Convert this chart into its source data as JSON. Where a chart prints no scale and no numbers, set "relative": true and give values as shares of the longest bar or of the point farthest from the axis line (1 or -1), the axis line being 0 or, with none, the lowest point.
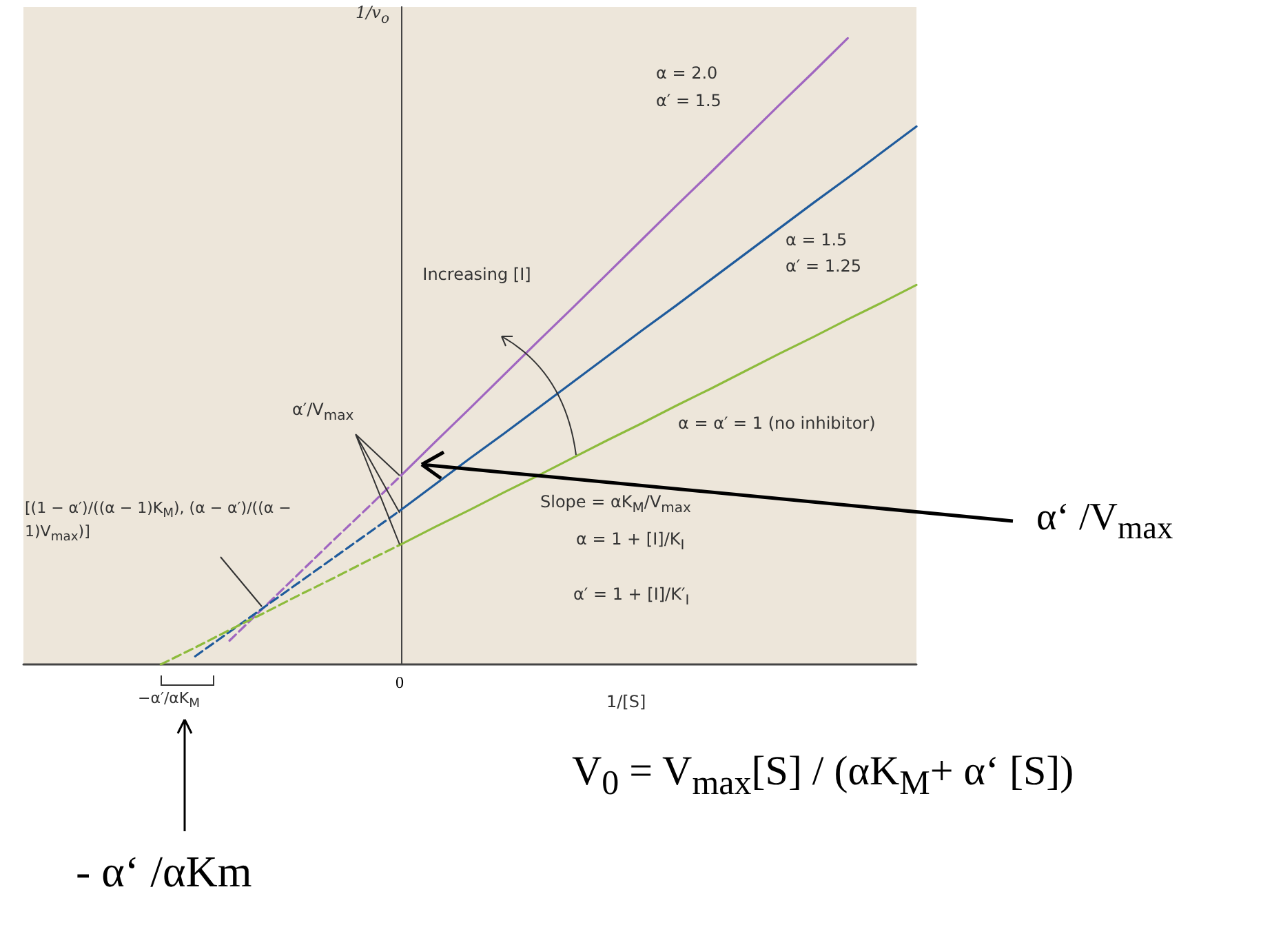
{
  "chart_data": {
    "type": "line",
    "relative": true,
    "xlabel": "1/[S]",
    "ylabel": "1/v$_{o}$",
    "marker": "none",
    "categories": [
      null,
      null,
      null,
      null,
      null,
      null,
      null,
      null,
      null,
      null,
      null,
      null,
      null,
      null,
      null,
      null,
      null,
      null,
      null,
      null,
      null,
      null,
      null,
      null,
      null,
      null,
      null
    ],
    "series": [
      {
        "color": "#a066c0",
        "line_style": "dashed",
        "values": [
          null,
          null,
          null,
          null,
          null,
          null,
          0.038,
          0.091,
          0.144,
          0.197,
          0.249,
          0.302,
          null,
          null,
          null,
          null,
          null,
          null,
          null,
          null,
          null,
          null,
          null,
          null,
          null,
          null,
          null
        ]
      },
      {
        "color": "#a066c0",
        "line_style": "solid",
        "values": [
          null,
          null,
          null,
          null,
          null,
          null,
          null,
          null,
          null,
          null,
          null,
          0.302,
          0.356,
          0.409,
          0.463,
          0.517,
          0.57,
          0.624,
          0.678,
          0.732,
          0.785,
          0.839,
          0.893,
          0.946,
          1.0,
          null,
          null
        ]
      },
      {
        "color": "#1f5b9c",
        "line_style": "dashed",
        "values": [
          null,
          null,
          null,
          null,
          null,
          0.013,
          0.052,
          0.091,
          0.13,
          0.169,
          0.208,
          0.247,
          null,
          null,
          null,
          null,
          null,
          null,
          null,
          null,
          null,
          null,
          null,
          null,
          null,
          null,
          null
        ]
      },
      {
        "color": "#1f5b9c",
        "line_style": "solid",
        "values": [
          null,
          null,
          null,
          null,
          null,
          null,
          null,
          null,
          null,
          null,
          null,
          0.247,
          0.288,
          0.329,
          0.369,
          0.41,
          0.451,
          0.492,
          0.533,
          0.573,
          0.614,
          0.655,
          0.696,
          0.737,
          0.777,
          0.818,
          0.859
        ]
      },
      {
        "color": "#8dbb3c",
        "line_style": "dashed",
        "values": [
          null,
          null,
          null,
          null,
          0,
          0.027,
          0.055,
          0.082,
          0.11,
          0.137,
          0.165,
          0.192,
          null,
          null,
          null,
          null,
          null,
          null,
          null,
          null,
          null,
          null,
          null,
          null,
          null,
          null,
          null
        ]
      },
      {
        "color": "#8dbb3c",
        "line_style": "solid",
        "values": [
          null,
          null,
          null,
          null,
          null,
          null,
          null,
          null,
          null,
          null,
          null,
          0.192,
          0.22,
          0.247,
          0.275,
          0.302,
          0.33,
          0.358,
          0.385,
          0.413,
          0.44,
          0.468,
          0.496,
          0.523,
          0.551,
          0.578,
          0.606
        ]
      }
    ],
    "annotations": [
      "α  = 2.0",
      "α′ = 1.5",
      "α  = 1.5",
      "α′ = 1.25",
      "α = α′ = 1 (no inhibitor)",
      "Increasing [I]",
      "α′/V$_{max}$",
      "[(1 − α′)/((α − 1)K$_{M}$), (α − α′)/((α − 1)V$_{max}$)]",
      "Slope = αK$_{M}$/V$_{max}$",
      "α = 1 + [I]/K$_{I}$",
      "α′ = 1 + [I]/K′$_{I}$",
      "−α′/αK$_{M}$",
      "α‘ /V$_{max}$",
      "- α‘ /αKm",
      "V$_{0}$ = V$_{max}$[S] / (αK$_{M}$+ α‘ [S])",
      "0"
    ]
  }
}
